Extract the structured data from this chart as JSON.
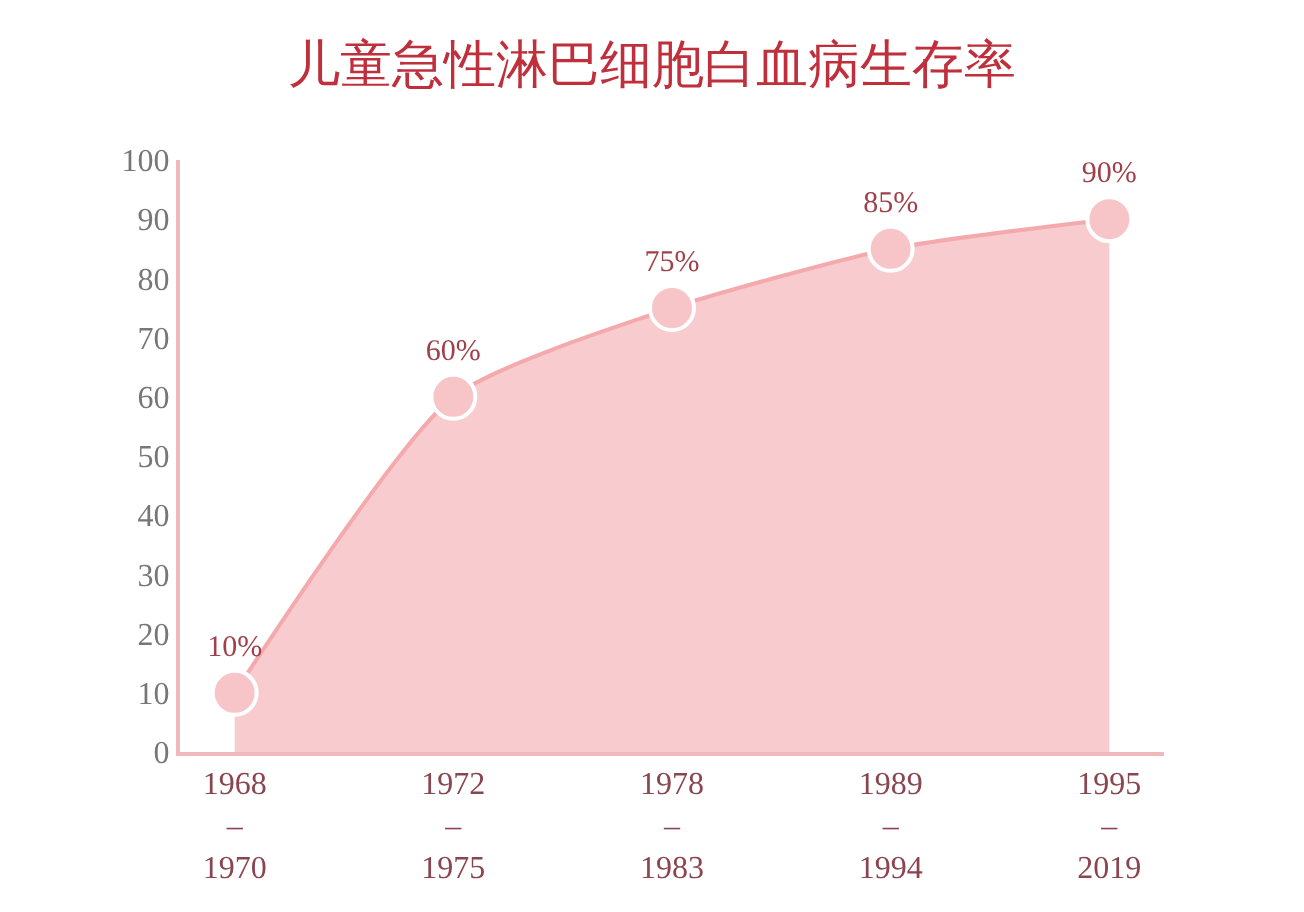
{
  "chart_data": {
    "type": "area",
    "title": "儿童急性淋巴细胞白血病生存率",
    "categories": [
      "1968\n–\n1970",
      "1972\n–\n1975",
      "1978\n–\n1983",
      "1989\n–\n1994",
      "1995\n–\n2019"
    ],
    "values": [
      10,
      60,
      75,
      85,
      90
    ],
    "value_labels": [
      "10%",
      "60%",
      "75%",
      "85%",
      "90%"
    ],
    "color": "#f4a9ad",
    "marker": "circle",
    "ylim": [
      0,
      100
    ],
    "yticks": [
      0,
      10,
      20,
      30,
      40,
      50,
      60,
      70,
      80,
      90,
      100
    ],
    "grid": false,
    "legend": false
  }
}
